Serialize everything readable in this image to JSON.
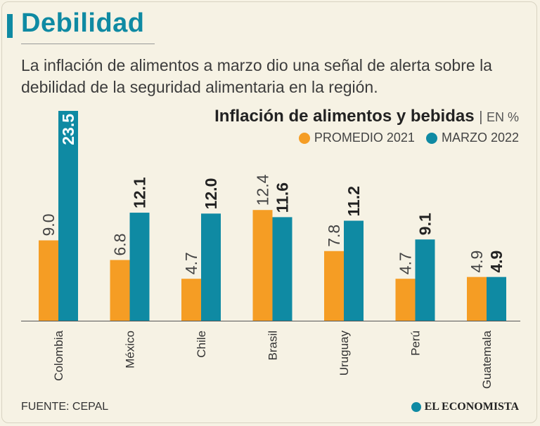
{
  "header": {
    "title": "Debilidad",
    "subtitle": "La inflación de alimentos a marzo dio una señal de alerta sobre la debilidad de la seguridad alimentaria en la región."
  },
  "footer": {
    "source": "FUENTE: CEPAL",
    "brand": "EL ECONOMISTA"
  },
  "colors": {
    "accent": "#0f8aa3",
    "series_2021": "#f59d24",
    "series_2022": "#0f8aa3"
  },
  "chart_data": {
    "type": "bar",
    "title": "Inflación de alimentos y bebidas",
    "unit": "EN %",
    "categories": [
      "Colombia",
      "México",
      "Chile",
      "Brasil",
      "Uruguay",
      "Perú",
      "Guatemala"
    ],
    "series": [
      {
        "name": "PROMEDIO 2021",
        "values": [
          9.0,
          6.8,
          4.7,
          12.4,
          7.8,
          4.7,
          4.9
        ]
      },
      {
        "name": "MARZO 2022",
        "values": [
          23.5,
          12.1,
          12.0,
          11.6,
          11.2,
          9.1,
          4.9
        ]
      }
    ],
    "ylim": [
      0,
      23.5
    ],
    "grid": false,
    "legend": "top-right"
  }
}
